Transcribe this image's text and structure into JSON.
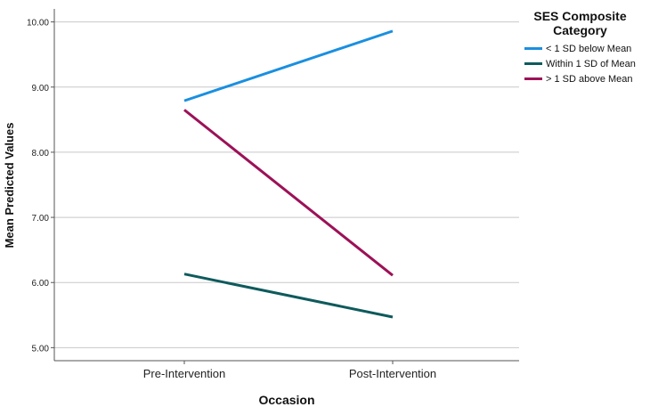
{
  "chart_data": {
    "type": "line",
    "title": "",
    "xlabel": "Occasion",
    "ylabel": "Mean Predicted Values",
    "categories": [
      "Pre-Intervention",
      "Post-Intervention"
    ],
    "ylim": [
      4.8,
      10.2
    ],
    "yticks": [
      5.0,
      6.0,
      7.0,
      8.0,
      9.0,
      10.0
    ],
    "ytick_labels": [
      "5.00",
      "6.00",
      "7.00",
      "8.00",
      "9.00",
      "10.00"
    ],
    "grid": "horizontal",
    "legend_position": "top-right",
    "legend_title": "SES Composite Category",
    "series": [
      {
        "name": "< 1 SD below Mean",
        "color": "#1a8fe0",
        "values": [
          8.79,
          9.86
        ]
      },
      {
        "name": "Within 1 SD of Mean",
        "color": "#0e5a5c",
        "values": [
          6.13,
          5.47
        ]
      },
      {
        "name": "> 1 SD above Mean",
        "color": "#9c1158",
        "values": [
          8.65,
          6.11
        ]
      }
    ]
  }
}
